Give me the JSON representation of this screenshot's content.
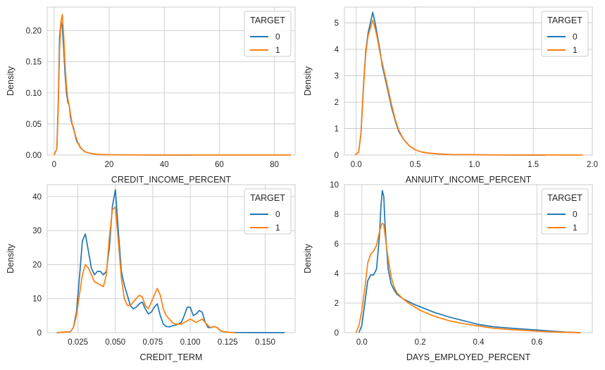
{
  "colors": {
    "target_0": "#1f77b4",
    "target_1": "#ff7f0e",
    "grid": "#cccccc",
    "frame": "#cccccc"
  },
  "chart_data": [
    {
      "type": "line",
      "xlabel": "CREDIT_INCOME_PERCENT",
      "ylabel": "Density",
      "xlim": [
        -2.5,
        87.5
      ],
      "ylim": [
        0,
        0.238
      ],
      "xticks": [
        0,
        20,
        40,
        60,
        80
      ],
      "xtick_labels": [
        "0",
        "20",
        "40",
        "60",
        "80"
      ],
      "yticks": [
        0,
        0.05,
        0.1,
        0.15,
        0.2
      ],
      "ytick_labels": [
        "0.00",
        "0.05",
        "0.10",
        "0.15",
        "0.20"
      ],
      "grid": true,
      "legend": {
        "title": "TARGET",
        "placement": "upper-right",
        "entries": [
          "0",
          "1"
        ]
      },
      "series": [
        {
          "name": "0",
          "color": "#1f77b4",
          "x": [
            0,
            1,
            1.5,
            2,
            2.5,
            3,
            3.5,
            4,
            4.5,
            5,
            5.5,
            6,
            6.5,
            7,
            7.5,
            8,
            8.5,
            9,
            9.5,
            10,
            11,
            12,
            14,
            16,
            20,
            30,
            40,
            50
          ],
          "y": [
            0,
            0.01,
            0.08,
            0.19,
            0.215,
            0.205,
            0.17,
            0.13,
            0.1,
            0.085,
            0.08,
            0.06,
            0.05,
            0.045,
            0.035,
            0.025,
            0.02,
            0.018,
            0.012,
            0.01,
            0.006,
            0.004,
            0.002,
            0.001,
            0.0005,
            0.0002,
            0.0001,
            0
          ]
        },
        {
          "name": "1",
          "color": "#ff7f0e",
          "x": [
            0,
            1,
            1.5,
            2,
            2.5,
            3,
            3.5,
            4,
            4.5,
            5,
            5.5,
            6,
            6.5,
            7,
            7.5,
            8,
            8.5,
            9,
            9.5,
            10,
            11,
            12,
            14,
            16,
            20,
            30,
            40,
            50,
            60,
            70,
            86
          ],
          "y": [
            0,
            0.01,
            0.07,
            0.17,
            0.215,
            0.226,
            0.19,
            0.145,
            0.11,
            0.09,
            0.08,
            0.065,
            0.052,
            0.042,
            0.035,
            0.028,
            0.022,
            0.016,
            0.013,
            0.01,
            0.006,
            0.004,
            0.002,
            0.001,
            0.0005,
            0.0002,
            0.0001,
            5e-05,
            3e-05,
            2e-05,
            0
          ]
        }
      ]
    },
    {
      "type": "line",
      "xlabel": "ANNUITY_INCOME_PERCENT",
      "ylabel": "Density",
      "xlim": [
        -0.1,
        2.0
      ],
      "ylim": [
        0,
        5.6
      ],
      "xticks": [
        0,
        0.5,
        1.0,
        1.5,
        2.0
      ],
      "xtick_labels": [
        "0.0",
        "0.5",
        "1.0",
        "1.5",
        "2.0"
      ],
      "yticks": [
        0,
        1,
        2,
        3,
        4,
        5
      ],
      "ytick_labels": [
        "0",
        "1",
        "2",
        "3",
        "4",
        "5"
      ],
      "grid": true,
      "legend": {
        "title": "TARGET",
        "placement": "upper-right",
        "entries": [
          "0",
          "1"
        ]
      },
      "series": [
        {
          "name": "0",
          "color": "#1f77b4",
          "x": [
            -0.01,
            0.02,
            0.04,
            0.06,
            0.08,
            0.1,
            0.12,
            0.14,
            0.16,
            0.18,
            0.2,
            0.22,
            0.25,
            0.28,
            0.3,
            0.33,
            0.36,
            0.4,
            0.45,
            0.5,
            0.55,
            0.6,
            0.7,
            0.8,
            1.0,
            1.2,
            1.4,
            1.6
          ],
          "y": [
            0,
            0.1,
            0.8,
            2.5,
            3.9,
            4.6,
            5.0,
            5.4,
            5.0,
            4.5,
            4.0,
            3.4,
            2.8,
            2.2,
            1.8,
            1.3,
            0.9,
            0.6,
            0.35,
            0.2,
            0.12,
            0.08,
            0.04,
            0.02,
            0.01,
            0.005,
            0.002,
            0
          ]
        },
        {
          "name": "1",
          "color": "#ff7f0e",
          "x": [
            -0.01,
            0.02,
            0.04,
            0.06,
            0.08,
            0.1,
            0.12,
            0.14,
            0.16,
            0.18,
            0.2,
            0.22,
            0.25,
            0.28,
            0.3,
            0.33,
            0.36,
            0.4,
            0.45,
            0.5,
            0.55,
            0.6,
            0.7,
            0.8,
            1.0,
            1.2,
            1.4,
            1.6,
            1.8,
            1.92
          ],
          "y": [
            0,
            0.1,
            0.8,
            2.4,
            3.8,
            4.5,
            4.8,
            5.1,
            4.8,
            4.4,
            3.9,
            3.5,
            2.9,
            2.3,
            1.9,
            1.35,
            0.95,
            0.6,
            0.35,
            0.2,
            0.12,
            0.08,
            0.04,
            0.02,
            0.01,
            0.005,
            0.003,
            0.002,
            0.001,
            0
          ]
        }
      ]
    },
    {
      "type": "line",
      "xlabel": "CREDIT_TERM",
      "ylabel": "Density",
      "xlim": [
        0.0045,
        0.17
      ],
      "ylim": [
        0,
        43.5
      ],
      "xticks": [
        0.025,
        0.05,
        0.075,
        0.1,
        0.125,
        0.15
      ],
      "xtick_labels": [
        "0.025",
        "0.050",
        "0.075",
        "0.100",
        "0.125",
        "0.150"
      ],
      "yticks": [
        0,
        10,
        20,
        30,
        40
      ],
      "ytick_labels": [
        "0",
        "10",
        "20",
        "30",
        "40"
      ],
      "grid": true,
      "legend": {
        "title": "TARGET",
        "placement": "upper-right",
        "entries": [
          "0",
          "1"
        ]
      },
      "series": [
        {
          "name": "0",
          "color": "#1f77b4",
          "x": [
            0.011,
            0.02,
            0.022,
            0.024,
            0.026,
            0.028,
            0.03,
            0.032,
            0.034,
            0.036,
            0.038,
            0.04,
            0.042,
            0.044,
            0.046,
            0.048,
            0.05,
            0.052,
            0.054,
            0.056,
            0.058,
            0.06,
            0.062,
            0.064,
            0.066,
            0.068,
            0.07,
            0.072,
            0.074,
            0.076,
            0.078,
            0.08,
            0.082,
            0.084,
            0.086,
            0.088,
            0.09,
            0.092,
            0.094,
            0.096,
            0.098,
            0.1,
            0.102,
            0.104,
            0.106,
            0.108,
            0.11,
            0.112,
            0.114,
            0.116,
            0.118,
            0.12,
            0.122,
            0.125,
            0.13,
            0.14,
            0.15,
            0.163
          ],
          "y": [
            0,
            0.3,
            1.5,
            6,
            16,
            27,
            29,
            24,
            19,
            17,
            18,
            18,
            17,
            18,
            25,
            37,
            42,
            30,
            18,
            14,
            11,
            8,
            7,
            7.5,
            8.5,
            9,
            7,
            5.5,
            6,
            7.5,
            8.5,
            5,
            2.5,
            1.8,
            1.7,
            2,
            2.2,
            2.5,
            3,
            5,
            7.5,
            7.5,
            5,
            5.5,
            6.5,
            6,
            3,
            1.5,
            1.5,
            1.8,
            1.5,
            0.6,
            0.3,
            0.1,
            0.05,
            0.02,
            0.01,
            0
          ]
        },
        {
          "name": "1",
          "color": "#ff7f0e",
          "x": [
            0.011,
            0.02,
            0.022,
            0.024,
            0.026,
            0.028,
            0.03,
            0.032,
            0.034,
            0.036,
            0.038,
            0.04,
            0.042,
            0.044,
            0.046,
            0.048,
            0.05,
            0.052,
            0.054,
            0.056,
            0.058,
            0.06,
            0.062,
            0.064,
            0.066,
            0.068,
            0.07,
            0.072,
            0.074,
            0.076,
            0.078,
            0.08,
            0.082,
            0.084,
            0.086,
            0.088,
            0.09,
            0.092,
            0.094,
            0.096,
            0.098,
            0.1,
            0.102,
            0.104,
            0.106,
            0.108,
            0.11,
            0.112,
            0.114,
            0.116,
            0.118,
            0.12,
            0.122,
            0.125,
            0.13
          ],
          "y": [
            0,
            0.3,
            1.5,
            5,
            11,
            17,
            20,
            19,
            17,
            15,
            14.5,
            14,
            13.5,
            17,
            28,
            36,
            37,
            27,
            16,
            10,
            8,
            8,
            9,
            10,
            11,
            10.5,
            8,
            7,
            9,
            11,
            13,
            11,
            7,
            5,
            4,
            3,
            2.5,
            2.5,
            2.5,
            3,
            3.5,
            4,
            3.5,
            3,
            3.5,
            4,
            3,
            2,
            1.5,
            1.8,
            1.5,
            0.7,
            0.3,
            0.1,
            0
          ]
        }
      ]
    },
    {
      "type": "line",
      "xlabel": "DAYS_EMPLOYED_PERCENT",
      "ylabel": "Density",
      "xlim": [
        -0.06,
        0.79
      ],
      "ylim": [
        0,
        10
      ],
      "xticks": [
        0,
        0.2,
        0.4,
        0.6
      ],
      "xtick_labels": [
        "0.0",
        "0.2",
        "0.4",
        "0.6"
      ],
      "yticks": [
        0,
        2,
        4,
        6,
        8,
        10
      ],
      "ytick_labels": [
        "0",
        "2",
        "4",
        "6",
        "8",
        "10"
      ],
      "grid": true,
      "legend": {
        "title": "TARGET",
        "placement": "upper-right",
        "entries": [
          "0",
          "1"
        ]
      },
      "series": [
        {
          "name": "0",
          "color": "#1f77b4",
          "x": [
            -0.01,
            0,
            0.01,
            0.02,
            0.03,
            0.04,
            0.05,
            0.06,
            0.065,
            0.07,
            0.075,
            0.08,
            0.09,
            0.1,
            0.11,
            0.12,
            0.14,
            0.16,
            0.18,
            0.2,
            0.25,
            0.3,
            0.35,
            0.4,
            0.45,
            0.5,
            0.55,
            0.6,
            0.65,
            0.7,
            0.75
          ],
          "y": [
            0,
            0.5,
            2.0,
            3.5,
            3.9,
            3.9,
            4.3,
            6.5,
            8.5,
            9.6,
            9.2,
            7.0,
            4.3,
            3.3,
            2.9,
            2.6,
            2.3,
            2.1,
            1.9,
            1.75,
            1.35,
            1.05,
            0.8,
            0.55,
            0.4,
            0.32,
            0.25,
            0.18,
            0.1,
            0.04,
            0
          ]
        },
        {
          "name": "1",
          "color": "#ff7f0e",
          "x": [
            -0.02,
            -0.01,
            0,
            0.01,
            0.02,
            0.03,
            0.04,
            0.05,
            0.06,
            0.065,
            0.07,
            0.075,
            0.08,
            0.09,
            0.1,
            0.11,
            0.12,
            0.14,
            0.16,
            0.18,
            0.2,
            0.25,
            0.3,
            0.35,
            0.4,
            0.45,
            0.5,
            0.55,
            0.6,
            0.65,
            0.7,
            0.75
          ],
          "y": [
            0,
            0.5,
            1.5,
            3.0,
            4.7,
            5.3,
            5.5,
            5.9,
            6.8,
            7.2,
            7.4,
            7.3,
            6.5,
            5.0,
            3.8,
            3.1,
            2.7,
            2.3,
            2.0,
            1.75,
            1.5,
            1.1,
            0.8,
            0.6,
            0.45,
            0.3,
            0.22,
            0.16,
            0.1,
            0.05,
            0.02,
            0
          ]
        }
      ]
    }
  ]
}
